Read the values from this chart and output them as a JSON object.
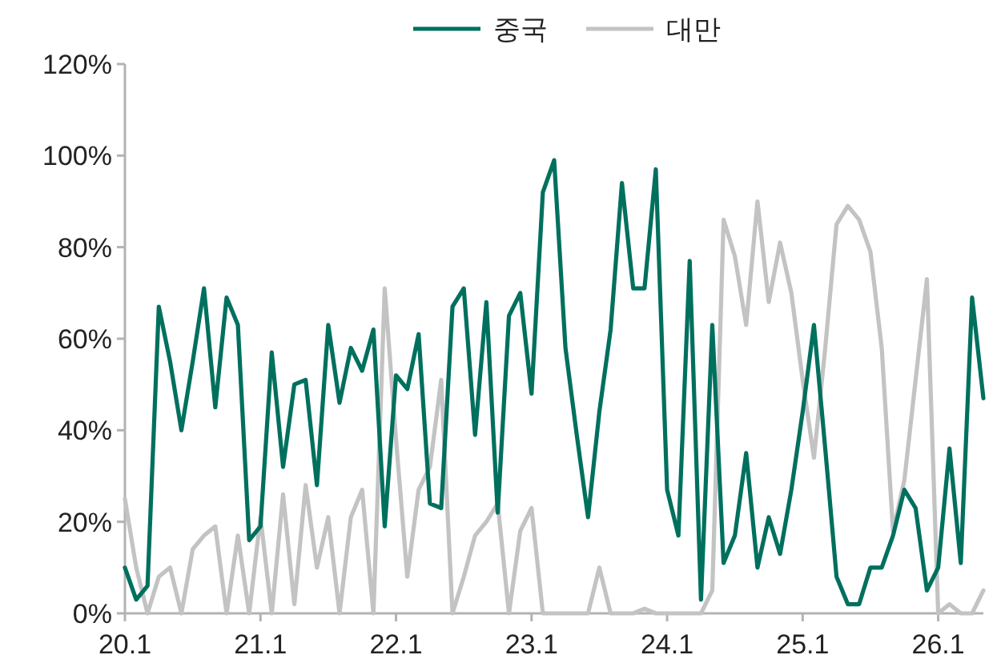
{
  "chart_data": {
    "type": "line",
    "categories": [
      "20.1",
      null,
      null,
      null,
      null,
      null,
      null,
      null,
      null,
      null,
      null,
      null,
      "21.1",
      null,
      null,
      null,
      null,
      null,
      null,
      null,
      null,
      null,
      null,
      null,
      "22.1",
      null,
      null,
      null,
      null,
      null,
      null,
      null,
      null,
      null,
      null,
      null,
      "23.1",
      null,
      null,
      null,
      null,
      null,
      null,
      null,
      null,
      null,
      null,
      null,
      "24.1",
      null,
      null,
      null,
      null,
      null,
      null,
      null,
      null,
      null,
      null,
      null,
      "25.1",
      null,
      null,
      null,
      null,
      null,
      null,
      null,
      null,
      null,
      null,
      null,
      "26.1",
      null,
      null,
      null,
      null
    ],
    "series": [
      {
        "name": "중국",
        "color": "#00705e",
        "values": [
          10,
          3,
          6,
          67,
          55,
          40,
          55,
          71,
          45,
          69,
          63,
          16,
          19,
          57,
          32,
          50,
          51,
          28,
          63,
          46,
          58,
          53,
          62,
          19,
          52,
          49,
          61,
          24,
          23,
          67,
          71,
          39,
          68,
          22,
          65,
          70,
          48,
          92,
          99,
          58,
          39,
          21,
          44,
          62,
          94,
          71,
          71,
          97,
          27,
          17,
          77,
          3,
          63,
          11,
          17,
          35,
          10,
          21,
          13,
          27,
          44,
          63,
          36,
          8,
          2,
          2,
          10,
          10,
          17,
          27,
          23,
          5,
          10,
          36,
          11,
          69,
          47
        ]
      },
      {
        "name": "대만",
        "color": "#c3c3c3",
        "values": [
          25,
          10,
          0,
          8,
          10,
          0,
          14,
          17,
          19,
          0,
          17,
          0,
          21,
          0,
          26,
          2,
          28,
          10,
          21,
          0,
          21,
          27,
          0,
          71,
          38,
          8,
          27,
          32,
          51,
          0,
          8,
          17,
          20,
          24,
          0,
          18,
          23,
          0,
          0,
          0,
          0,
          0,
          10,
          0,
          0,
          0,
          1,
          0,
          0,
          0,
          0,
          0,
          5,
          86,
          78,
          63,
          90,
          68,
          81,
          70,
          51,
          34,
          58,
          85,
          89,
          86,
          79,
          58,
          18,
          29,
          51,
          73,
          0,
          2,
          0,
          0,
          5
        ]
      }
    ],
    "ylim": [
      0,
      120
    ],
    "yticks": [
      {
        "value": 0,
        "label": "0%"
      },
      {
        "value": 20,
        "label": "20%"
      },
      {
        "value": 40,
        "label": "40%"
      },
      {
        "value": 60,
        "label": "60%"
      },
      {
        "value": 80,
        "label": "80%"
      },
      {
        "value": 100,
        "label": "100%"
      },
      {
        "value": 120,
        "label": "120%"
      }
    ],
    "legend": "top",
    "grid": false,
    "marker": "none",
    "line_style": "solid"
  }
}
